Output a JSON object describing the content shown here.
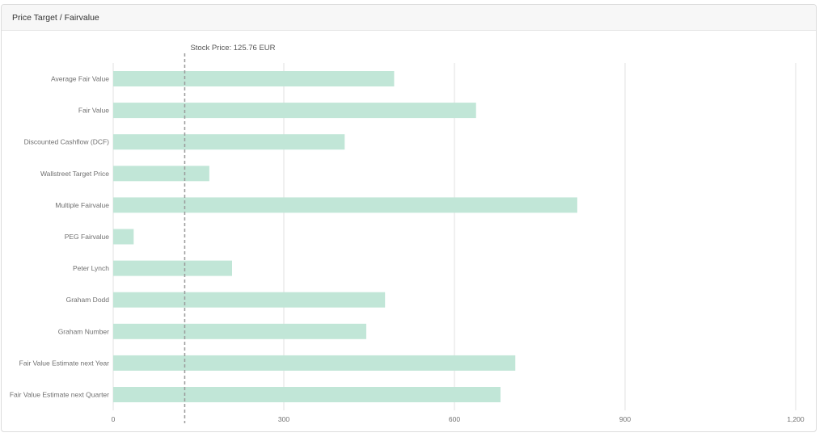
{
  "card": {
    "title": "Price Target / Fairvalue"
  },
  "chart_data": {
    "type": "bar",
    "orientation": "horizontal",
    "categories": [
      "Average Fair Value",
      "Fair Value",
      "Discounted Cashflow (DCF)",
      "Wallstreet Target Price",
      "Multiple Fairvalue",
      "PEG Fairvalue",
      "Peter Lynch",
      "Graham Dodd",
      "Graham Number",
      "Fair Value Estimate next Year",
      "Fair Value Estimate next Quarter"
    ],
    "values": [
      494,
      638,
      407,
      169,
      816,
      36,
      209,
      478,
      445,
      707,
      681
    ],
    "xlim": [
      0,
      1200
    ],
    "xticks": [
      0,
      300,
      600,
      900,
      1200
    ],
    "xtick_labels": [
      "0",
      "300",
      "600",
      "900",
      "1,200"
    ],
    "reference_line": {
      "value": 125.76,
      "label": "Stock Price: 125.76 EUR"
    },
    "grid": true,
    "colors": {
      "bar": "#c1e6d7",
      "grid": "#e2e2e2",
      "reference": "#9a9a9a"
    }
  }
}
